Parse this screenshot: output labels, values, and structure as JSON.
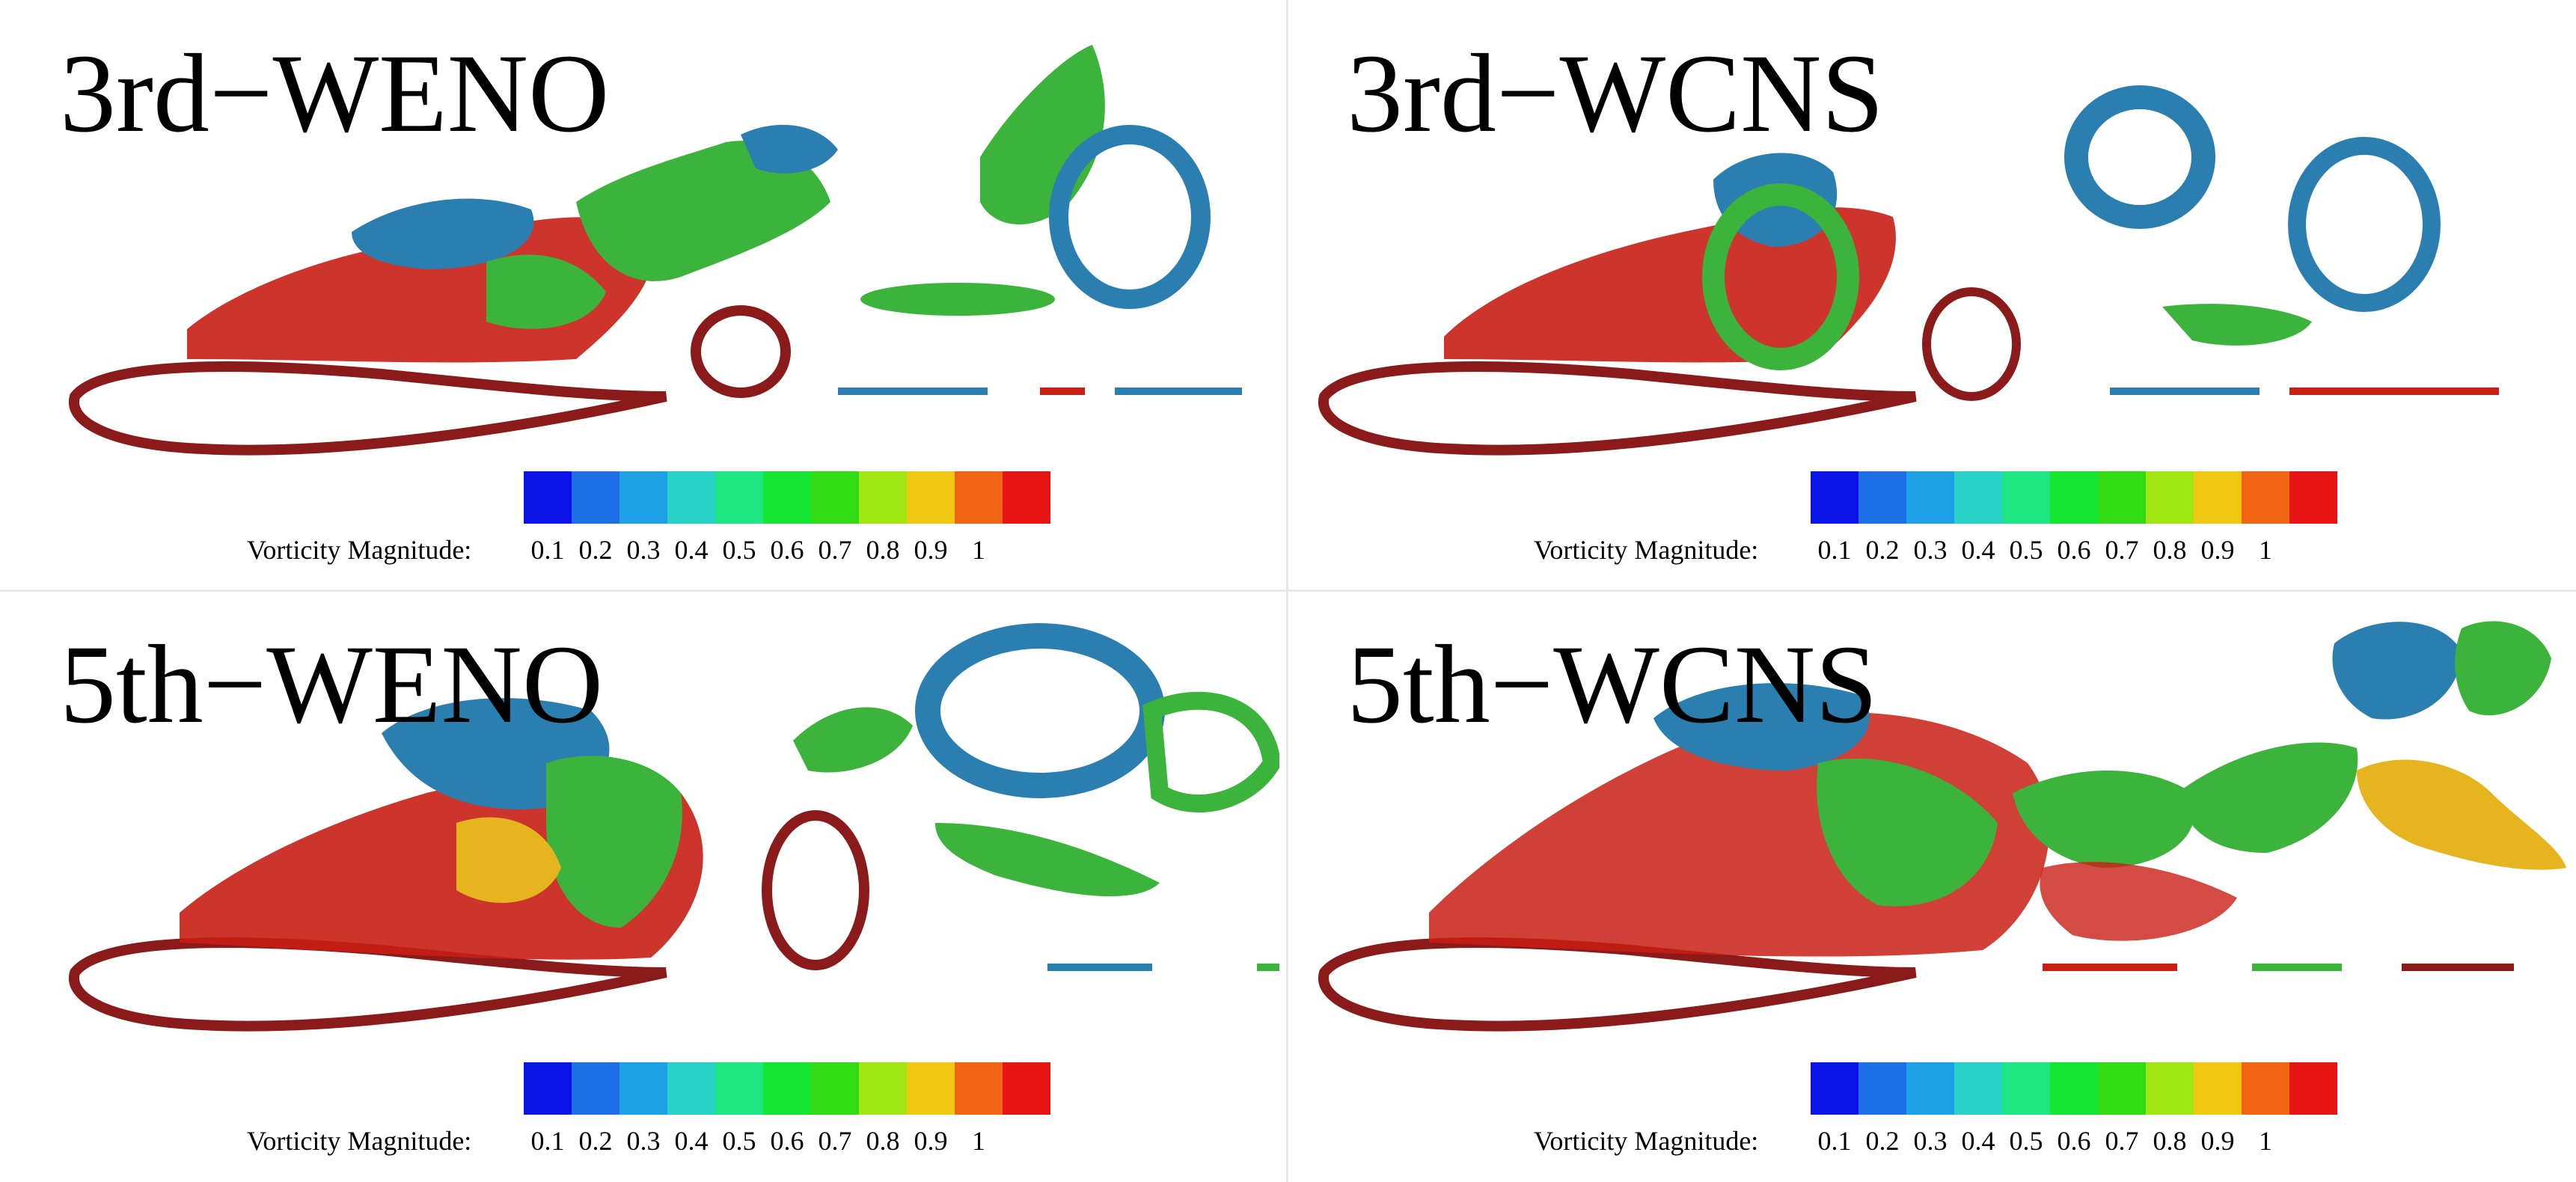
{
  "panels": [
    {
      "id": "tl",
      "title": "3rd−WENO"
    },
    {
      "id": "tr",
      "title": "3rd−WCNS"
    },
    {
      "id": "bl",
      "title": "5th−WENO"
    },
    {
      "id": "br",
      "title": "5th−WCNS"
    }
  ],
  "colorbar": {
    "label": "Vorticity Magnitude:",
    "ticks": [
      "0.1",
      "0.2",
      "0.3",
      "0.4",
      "0.5",
      "0.6",
      "0.7",
      "0.8",
      "0.9",
      "1"
    ],
    "colors": [
      "#0a14e6",
      "#1e6ee6",
      "#1ea0e6",
      "#28d2c8",
      "#1ee682",
      "#14e632",
      "#32dc14",
      "#a0e614",
      "#f0c814",
      "#f06414",
      "#e61414"
    ]
  },
  "palette": {
    "airfoil": "#8b1a1a",
    "low": "#2a7fb0",
    "mid": "#3cb43c",
    "high": "#c81e14",
    "warm": "#e6b41e"
  }
}
